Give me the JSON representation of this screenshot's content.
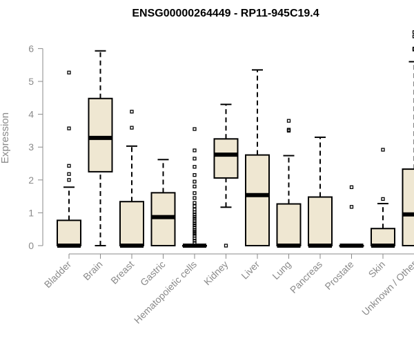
{
  "colors": {
    "box_fill": "#efe7d2",
    "box_stroke": "#000000",
    "axis": "#8a8a8a",
    "title": "#000000"
  },
  "chart_data": {
    "type": "boxplot",
    "title": "ENSG00000264449 - RP11-945C19.4",
    "ylabel": "Expression",
    "xlabel": "",
    "ylim": [
      0,
      6.6
    ],
    "yticks": [
      0,
      1,
      2,
      3,
      4,
      5,
      6
    ],
    "grid": false,
    "legend": "none",
    "categories": [
      "Bladder",
      "Brain",
      "Breast",
      "Gastric",
      "Hematopoietic cells",
      "Kidney",
      "Liver",
      "Lung",
      "Pancreas",
      "Prostate",
      "Skin",
      "Unknown / Other"
    ],
    "boxes": [
      {
        "category": "Bladder",
        "q1": 0,
        "median": 0,
        "q3": 0.77,
        "whisker_low": 0,
        "whisker_high": 1.78,
        "outliers": [
          2.0,
          2.18,
          2.43,
          3.57,
          5.27
        ]
      },
      {
        "category": "Brain",
        "q1": 2.25,
        "median": 3.28,
        "q3": 4.48,
        "whisker_low": 0,
        "whisker_high": 5.93,
        "outliers": []
      },
      {
        "category": "Breast",
        "q1": 0,
        "median": 0,
        "q3": 1.34,
        "whisker_low": 0,
        "whisker_high": 3.03,
        "outliers": [
          3.59,
          4.08
        ]
      },
      {
        "category": "Gastric",
        "q1": 0,
        "median": 0.87,
        "q3": 1.61,
        "whisker_low": 0,
        "whisker_high": 2.62,
        "outliers": []
      },
      {
        "category": "Hematopoietic cells",
        "q1": 0,
        "median": 0,
        "q3": 0,
        "whisker_low": 0,
        "whisker_high": 0,
        "outliers": [
          0.08,
          0.15,
          0.22,
          0.3,
          0.36,
          0.42,
          0.48,
          0.55,
          0.62,
          0.68,
          0.75,
          0.82,
          0.88,
          0.95,
          1.02,
          1.1,
          1.2,
          1.3,
          1.45,
          1.6,
          1.8,
          1.95,
          2.15,
          2.4,
          2.65,
          2.9,
          3.55
        ]
      },
      {
        "category": "Kidney",
        "q1": 2.06,
        "median": 2.77,
        "q3": 3.25,
        "whisker_low": 1.17,
        "whisker_high": 4.3,
        "outliers": [
          0
        ]
      },
      {
        "category": "Liver",
        "q1": 0,
        "median": 1.54,
        "q3": 2.76,
        "whisker_low": 0,
        "whisker_high": 5.35,
        "outliers": []
      },
      {
        "category": "Lung",
        "q1": 0,
        "median": 0,
        "q3": 1.27,
        "whisker_low": 0,
        "whisker_high": 2.74,
        "outliers": [
          3.5,
          3.53,
          3.8
        ]
      },
      {
        "category": "Pancreas",
        "q1": 0,
        "median": 0,
        "q3": 1.48,
        "whisker_low": 0,
        "whisker_high": 3.3,
        "outliers": []
      },
      {
        "category": "Prostate",
        "q1": 0,
        "median": 0,
        "q3": 0,
        "whisker_low": 0,
        "whisker_high": 0,
        "outliers": [
          1.18,
          1.78
        ]
      },
      {
        "category": "Skin",
        "q1": 0,
        "median": 0,
        "q3": 0.52,
        "whisker_low": 0,
        "whisker_high": 1.28,
        "outliers": [
          1.42,
          2.92
        ]
      },
      {
        "category": "Unknown / Other",
        "q1": 0,
        "median": 0.95,
        "q3": 2.33,
        "whisker_low": 0,
        "whisker_high": 5.6,
        "outliers": [
          5.97,
          6.0,
          6.37,
          6.5
        ]
      }
    ]
  }
}
